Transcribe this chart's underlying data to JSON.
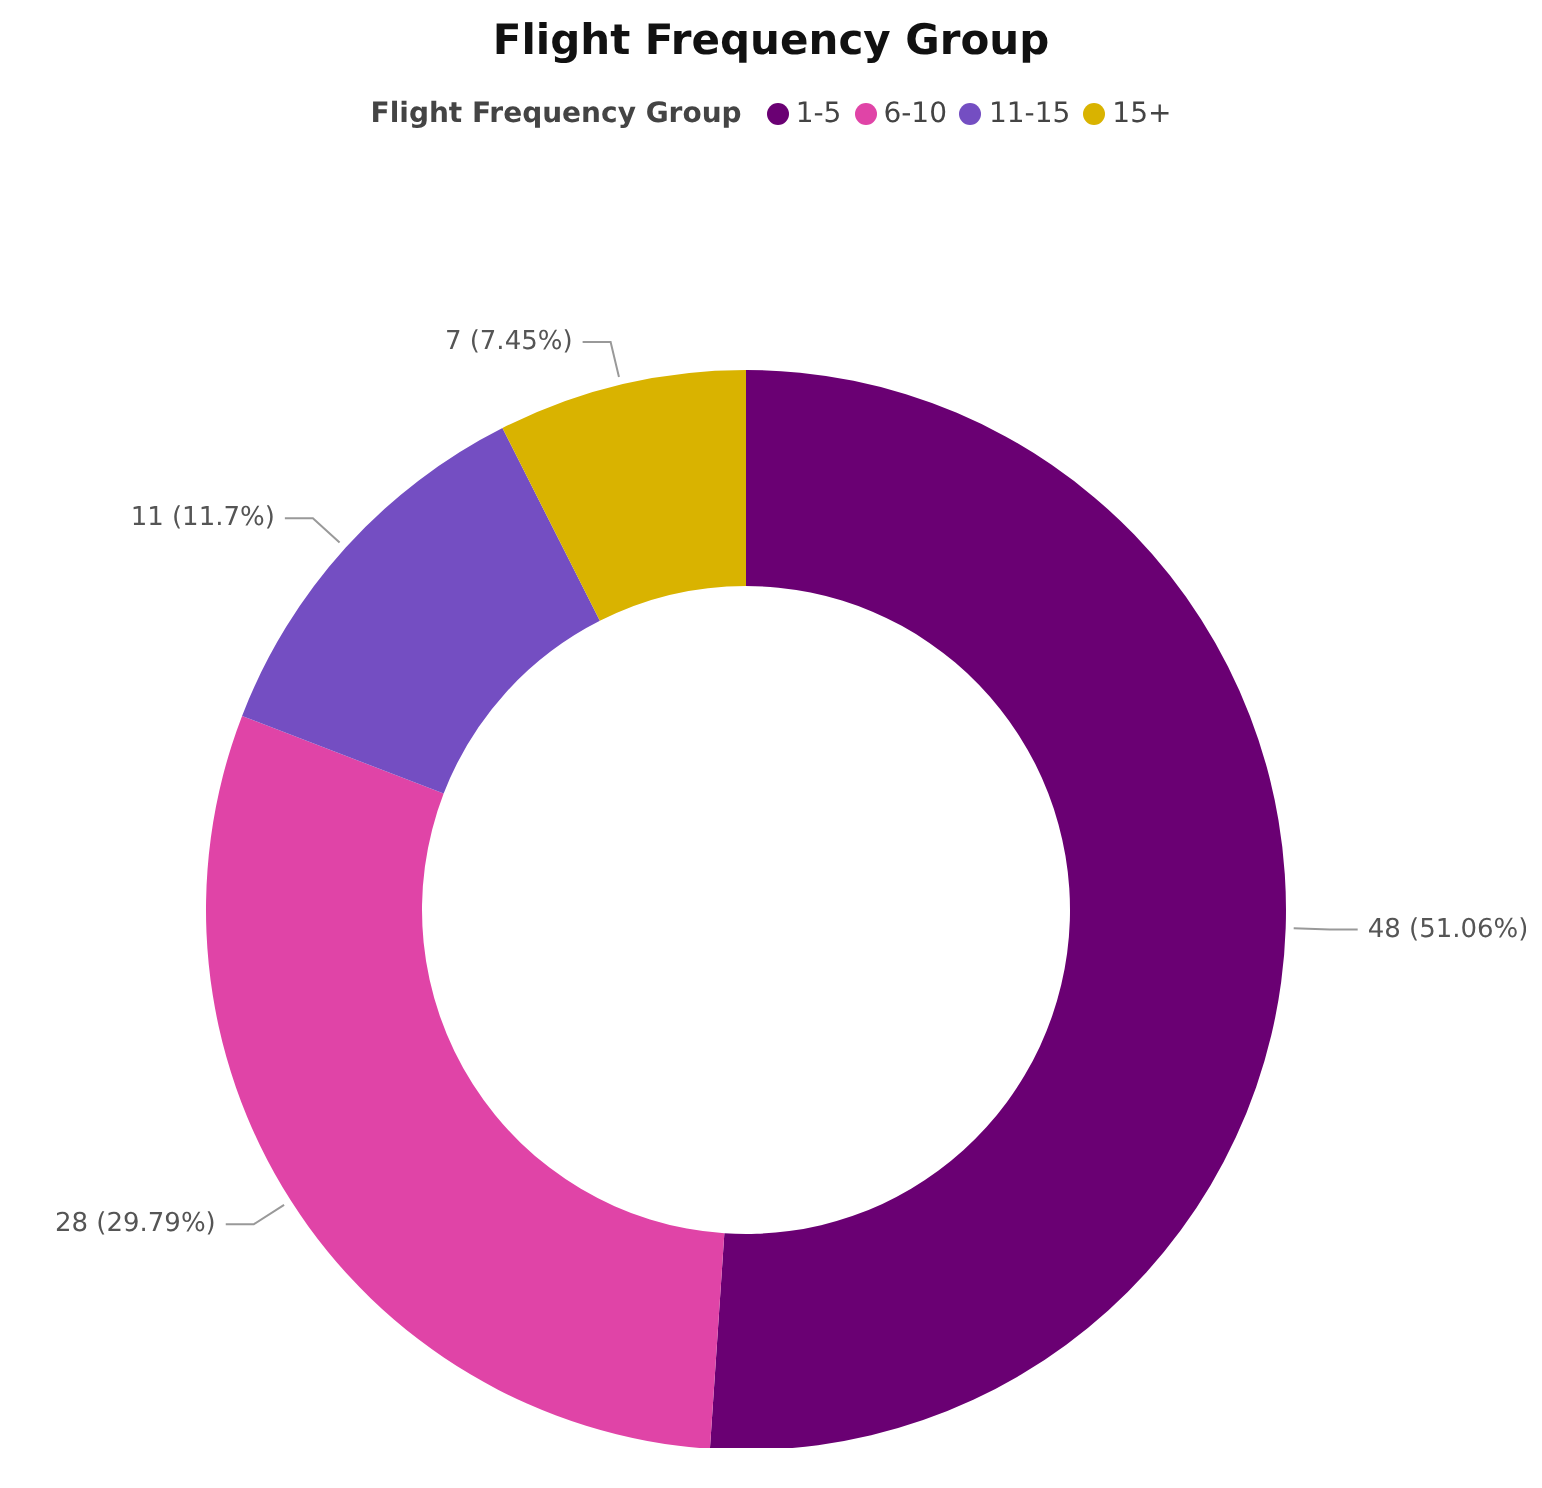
{
  "chart_data": {
    "type": "donut",
    "title": "Flight Frequency Group",
    "legend_title": "Flight Frequency Group",
    "legend": "top",
    "categories": [
      "1-5",
      "6-10",
      "11-15",
      "15+"
    ],
    "values": [
      48,
      28,
      11,
      7
    ],
    "colors": [
      "#6a0073",
      "#e044a7",
      "#744ec2",
      "#d9b300"
    ],
    "value_labels": [
      "48 (51.06%)",
      "28 (29.79%)",
      "11 (11.7%)",
      "7 (7.45%)"
    ]
  }
}
